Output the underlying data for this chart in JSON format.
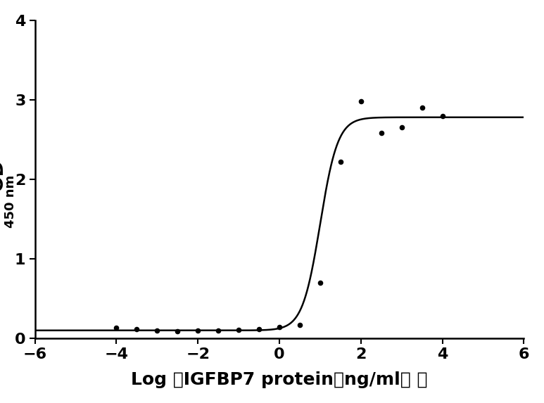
{
  "scatter_x": [
    -4.0,
    -3.5,
    -3.0,
    -2.5,
    -2.0,
    -1.5,
    -1.0,
    -0.5,
    0.0,
    0.5,
    1.0,
    1.5,
    2.0,
    2.5,
    3.0,
    3.5,
    4.0
  ],
  "scatter_y": [
    0.13,
    0.12,
    0.1,
    0.09,
    0.1,
    0.1,
    0.11,
    0.12,
    0.14,
    0.17,
    0.7,
    2.22,
    2.98,
    2.58,
    2.65,
    2.9,
    2.8
  ],
  "xlabel": "Log （IGFBP7 protein（ng/ml） ）",
  "xlim": [
    -6,
    6
  ],
  "ylim": [
    0,
    4
  ],
  "xticks": [
    -6,
    -4,
    -2,
    0,
    2,
    4,
    6
  ],
  "yticks": [
    0,
    1,
    2,
    3,
    4
  ],
  "line_color": "#000000",
  "dot_color": "#000000",
  "background_color": "#ffffff",
  "xlabel_fontsize": 18,
  "tick_fontsize": 16
}
